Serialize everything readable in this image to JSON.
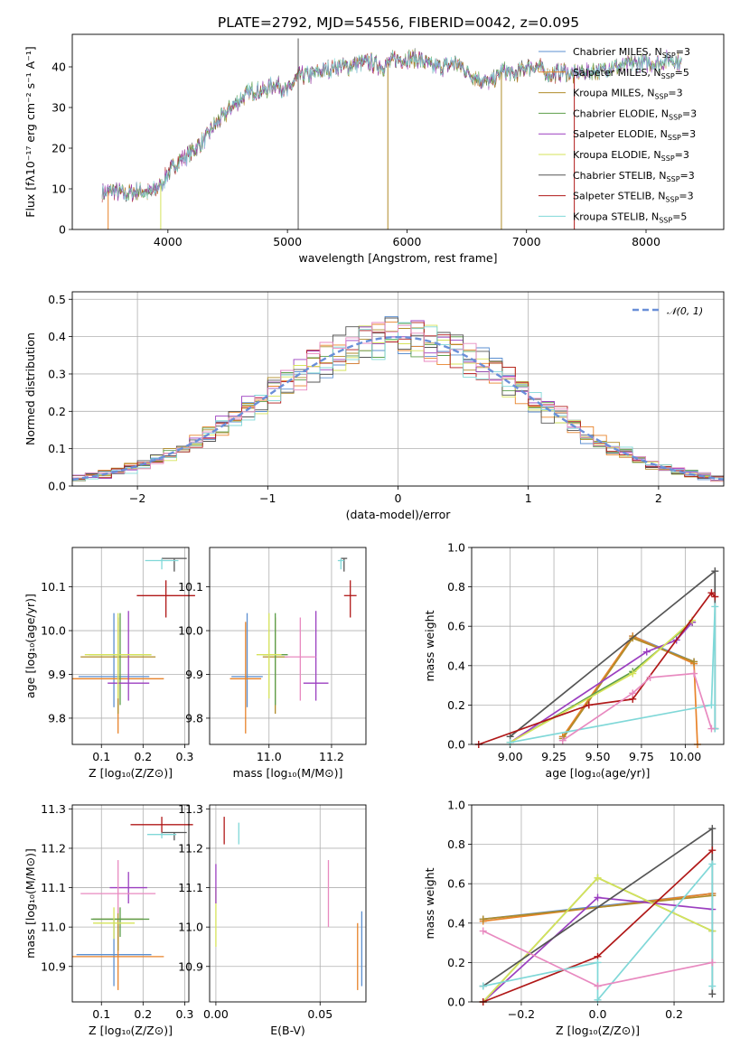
{
  "title": "PLATE=2792, MJD=54556, FIBERID=0042, z=0.095",
  "colors": {
    "Chabrier MILES": "#5b8fd0",
    "Salpeter MILES": "#e8832a",
    "Kroupa MILES": "#b08c2a",
    "Chabrier ELODIE": "#5d9e4a",
    "Salpeter ELODIE": "#9b3fc0",
    "Kroupa ELODIE": "#d6e35a",
    "Chabrier STELIB": "#555555",
    "Salpeter STELIB": "#b01818",
    "Kroupa STELIB": "#80d8d8",
    "Gaussian": "#6a8fd8",
    "Pink": "#e88ac0"
  },
  "chart_data": [
    {
      "type": "line",
      "panel": "spectrum",
      "xlabel": "wavelength [Angstrom, rest frame]",
      "ylabel": "Flux [fλ10⁻¹⁷ erg cm⁻² s⁻¹ A⁻¹]",
      "xlim": [
        3200,
        8650
      ],
      "ylim": [
        0,
        48
      ],
      "xticks": [
        4000,
        5000,
        6000,
        7000,
        8000
      ],
      "yticks": [
        0,
        10,
        20,
        30,
        40
      ],
      "continuum": {
        "x": [
          3450,
          3550,
          3650,
          3750,
          3850,
          3950,
          4000,
          4100,
          4200,
          4300,
          4400,
          4500,
          4600,
          4700,
          4800,
          4900,
          5000,
          5100,
          5200,
          5300,
          5400,
          5500,
          5600,
          5700,
          5800,
          5900,
          6000,
          6100,
          6200,
          6300,
          6400,
          6500,
          6600,
          6700,
          6800,
          6900,
          7000,
          7100,
          7200,
          7300,
          7400,
          7500,
          7600,
          7700,
          7800,
          7900,
          8000,
          8100,
          8200,
          8300
        ],
        "y": [
          9,
          9.5,
          8.5,
          9.5,
          9,
          11,
          14,
          17,
          19,
          22,
          26,
          29,
          32,
          34,
          34,
          36,
          34,
          38,
          38,
          39,
          40,
          40,
          41,
          41,
          40,
          42,
          42,
          42,
          40,
          40,
          41,
          39,
          37,
          36,
          39,
          38,
          40,
          40,
          38,
          39,
          38,
          39,
          39,
          40,
          40,
          41,
          41,
          41,
          42,
          41
        ]
      },
      "legend": [
        "Chabrier MILES, N_SSP=3",
        "Salpeter MILES, N_SSP=5",
        "Kroupa MILES, N_SSP=3",
        "Chabrier ELODIE, N_SSP=3",
        "Salpeter ELODIE, N_SSP=3",
        "Kroupa ELODIE, N_SSP=3",
        "Chabrier STELIB, N_SSP=3",
        "Salpeter STELIB, N_SSP=3",
        "Kroupa STELIB, N_SSP=5"
      ]
    },
    {
      "type": "line",
      "panel": "residuals",
      "xlabel": "(data-model)/error",
      "ylabel": "Normed distribution",
      "xlim": [
        -2.5,
        2.5
      ],
      "ylim": [
        0,
        0.52
      ],
      "xticks": [
        -2,
        -1,
        0,
        1,
        2
      ],
      "yticks": [
        0.0,
        0.1,
        0.2,
        0.3,
        0.4,
        0.5
      ],
      "legend": [
        "𝒩(0, 1)"
      ],
      "bin_width": 0.1
    },
    {
      "type": "scatter",
      "panel": "age-vs-Z",
      "xlabel": "Z [log₁₀(Z/Z⊙)]",
      "ylabel": "age  [log₁₀(age/yr)]",
      "xlim": [
        0.03,
        0.31
      ],
      "ylim": [
        9.74,
        10.19
      ],
      "xticks": [
        0.1,
        0.2,
        0.3
      ],
      "yticks": [
        9.8,
        9.9,
        10.0,
        10.1
      ],
      "points": [
        {
          "series": "Chabrier MILES",
          "x": 0.13,
          "y": 9.895,
          "xerr": 0.085,
          "yerr": [
            0.07,
            0.145
          ]
        },
        {
          "series": "Salpeter MILES",
          "x": 0.14,
          "y": 9.89,
          "xerr": 0.11,
          "yerr": [
            0.125,
            0.13
          ]
        },
        {
          "series": "Kroupa MILES",
          "x": 0.14,
          "y": 9.94,
          "xerr": 0.09,
          "yerr": [
            0.13,
            0.09
          ]
        },
        {
          "series": "Chabrier ELODIE",
          "x": 0.145,
          "y": 9.945,
          "xerr": 0.075,
          "yerr": [
            0.115,
            0.095
          ]
        },
        {
          "series": "Salpeter ELODIE",
          "x": 0.165,
          "y": 9.88,
          "xerr": 0.05,
          "yerr": [
            0.04,
            0.165
          ]
        },
        {
          "series": "Kroupa ELODIE",
          "x": 0.14,
          "y": 9.945,
          "xerr": 0.08,
          "yerr": [
            0.1,
            0.095
          ]
        },
        {
          "series": "Chabrier STELIB",
          "x": 0.275,
          "y": 10.165,
          "xerr": 0.03,
          "yerr": [
            0.03,
            0.0
          ]
        },
        {
          "series": "Salpeter STELIB",
          "x": 0.255,
          "y": 10.08,
          "xerr": 0.07,
          "yerr": [
            0.05,
            0.035
          ]
        },
        {
          "series": "Kroupa STELIB",
          "x": 0.245,
          "y": 10.16,
          "xerr": 0.04,
          "yerr": [
            0.02,
            0.005
          ]
        }
      ]
    },
    {
      "type": "scatter",
      "panel": "age-vs-mass",
      "xlabel": "mass [log₁₀(M/M⊙)]",
      "ylabel": "",
      "xlim": [
        10.81,
        11.31
      ],
      "ylim": [
        9.74,
        10.19
      ],
      "xticks": [
        11.0,
        11.2
      ],
      "yticks": [
        9.8,
        9.9,
        10.0,
        10.1
      ],
      "points": [
        {
          "series": "Chabrier MILES",
          "x": 10.93,
          "y": 9.895,
          "xerr": 0.05,
          "yerr": [
            0.07,
            0.145
          ]
        },
        {
          "series": "Salpeter MILES",
          "x": 10.925,
          "y": 9.89,
          "xerr": 0.05,
          "yerr": [
            0.125,
            0.13
          ]
        },
        {
          "series": "Kroupa MILES",
          "x": 11.02,
          "y": 9.94,
          "xerr": 0.04,
          "yerr": [
            0.13,
            0.09
          ]
        },
        {
          "series": "Chabrier ELODIE",
          "x": 11.02,
          "y": 9.945,
          "xerr": 0.04,
          "yerr": [
            0.115,
            0.095
          ]
        },
        {
          "series": "Salpeter ELODIE",
          "x": 11.15,
          "y": 9.88,
          "xerr": 0.04,
          "yerr": [
            0.04,
            0.165
          ]
        },
        {
          "series": "Kroupa ELODIE",
          "x": 11.0,
          "y": 9.945,
          "xerr": 0.04,
          "yerr": [
            0.1,
            0.095
          ]
        },
        {
          "series": "Chabrier STELIB",
          "x": 11.24,
          "y": 10.165,
          "xerr": 0.01,
          "yerr": [
            0.03,
            0.0
          ]
        },
        {
          "series": "Salpeter STELIB",
          "x": 11.26,
          "y": 10.08,
          "xerr": 0.02,
          "yerr": [
            0.05,
            0.035
          ]
        },
        {
          "series": "Kroupa STELIB",
          "x": 11.23,
          "y": 10.16,
          "xerr": 0.01,
          "yerr": [
            0.02,
            0.005
          ]
        },
        {
          "series": "Pink",
          "x": 11.1,
          "y": 9.94,
          "xerr": 0.05,
          "yerr": [
            0.1,
            0.09
          ]
        }
      ]
    },
    {
      "type": "line",
      "panel": "mass-weight-vs-age",
      "xlabel": "age  [log₁₀(age/yr)]",
      "ylabel": "mass weight",
      "xlim": [
        8.78,
        10.22
      ],
      "ylim": [
        0,
        1.0
      ],
      "xticks": [
        9.0,
        9.25,
        9.5,
        9.75,
        10.0
      ],
      "yticks": [
        0.0,
        0.2,
        0.4,
        0.6,
        0.8,
        1.0
      ],
      "series": [
        {
          "name": "Chabrier MILES",
          "x": [
            9.3,
            9.7,
            10.05
          ],
          "y": [
            0.03,
            0.55,
            0.42
          ]
        },
        {
          "name": "Salpeter MILES",
          "x": [
            9.3,
            9.7,
            10.05,
            10.07
          ],
          "y": [
            0.04,
            0.55,
            0.41,
            0.0
          ]
        },
        {
          "name": "Kroupa MILES",
          "x": [
            9.3,
            9.7,
            10.05
          ],
          "y": [
            0.03,
            0.54,
            0.42
          ]
        },
        {
          "name": "Chabrier ELODIE",
          "x": [
            9.0,
            9.7,
            10.04
          ],
          "y": [
            0.01,
            0.37,
            0.62
          ]
        },
        {
          "name": "Salpeter ELODIE",
          "x": [
            9.0,
            9.78,
            9.95,
            10.04
          ],
          "y": [
            0.01,
            0.47,
            0.53,
            0.62
          ]
        },
        {
          "name": "Kroupa ELODIE",
          "x": [
            9.0,
            9.7,
            10.04
          ],
          "y": [
            0.01,
            0.36,
            0.63
          ]
        },
        {
          "name": "Chabrier STELIB",
          "x": [
            9.0,
            10.17,
            10.17
          ],
          "y": [
            0.04,
            0.88,
            0.08
          ]
        },
        {
          "name": "Salpeter STELIB",
          "x": [
            8.82,
            9.45,
            9.7,
            10.15,
            10.17
          ],
          "y": [
            0.0,
            0.2,
            0.23,
            0.77,
            0.75
          ]
        },
        {
          "name": "Kroupa STELIB",
          "x": [
            9.0,
            10.15,
            10.17,
            10.17
          ],
          "y": [
            0.01,
            0.2,
            0.7,
            0.08
          ]
        },
        {
          "name": "Pink",
          "x": [
            9.3,
            9.7,
            9.8,
            10.05,
            10.15
          ],
          "y": [
            0.02,
            0.26,
            0.34,
            0.36,
            0.08
          ]
        }
      ]
    },
    {
      "type": "scatter",
      "panel": "mass-vs-Z",
      "xlabel": "Z [log₁₀(Z/Z⊙)]",
      "ylabel": "mass [log₁₀(M/M⊙)]",
      "xlim": [
        0.03,
        0.31
      ],
      "ylim": [
        10.81,
        11.31
      ],
      "xticks": [
        0.1,
        0.2,
        0.3
      ],
      "yticks": [
        10.9,
        11.0,
        11.1,
        11.2,
        11.3
      ],
      "points": [
        {
          "series": "Chabrier MILES",
          "x": 0.13,
          "y": 10.93,
          "xerr": 0.09,
          "yerr": [
            0.08,
            0.09
          ]
        },
        {
          "series": "Salpeter MILES",
          "x": 0.14,
          "y": 10.925,
          "xerr": 0.11,
          "yerr": [
            0.085,
            0.085
          ]
        },
        {
          "series": "Kroupa MILES",
          "x": 0.14,
          "y": 11.02,
          "xerr": 0.06,
          "yerr": [
            0.08,
            0.03
          ]
        },
        {
          "series": "Chabrier ELODIE",
          "x": 0.145,
          "y": 11.02,
          "xerr": 0.07,
          "yerr": [
            0.045,
            0.03
          ]
        },
        {
          "series": "Salpeter ELODIE",
          "x": 0.165,
          "y": 11.1,
          "xerr": 0.045,
          "yerr": [
            0.04,
            0.04
          ]
        },
        {
          "series": "Kroupa ELODIE",
          "x": 0.13,
          "y": 11.01,
          "xerr": 0.05,
          "yerr": [
            0.04,
            0.04
          ]
        },
        {
          "series": "Chabrier STELIB",
          "x": 0.275,
          "y": 11.24,
          "xerr": 0.03,
          "yerr": [
            0.02,
            0.0
          ]
        },
        {
          "series": "Salpeter STELIB",
          "x": 0.245,
          "y": 11.26,
          "xerr": 0.075,
          "yerr": [
            0.025,
            0.02
          ]
        },
        {
          "series": "Kroupa STELIB",
          "x": 0.245,
          "y": 11.235,
          "xerr": 0.035,
          "yerr": [
            0.01,
            0.005
          ]
        },
        {
          "series": "Pink",
          "x": 0.14,
          "y": 11.085,
          "xerr": 0.09,
          "yerr": [
            0.05,
            0.085
          ]
        }
      ]
    },
    {
      "type": "scatter",
      "panel": "mass-vs-EBV",
      "xlabel": "E(B-V)",
      "ylabel": "",
      "xlim": [
        -0.003,
        0.072
      ],
      "ylim": [
        10.81,
        11.31
      ],
      "xticks": [
        0.0,
        0.05
      ],
      "yticks": [
        10.9,
        11.0,
        11.1,
        11.2,
        11.3
      ],
      "points": [
        {
          "series": "Chabrier MILES",
          "x": 0.07,
          "y": 10.93,
          "xerr": 0.0,
          "yerr": [
            0.08,
            0.11
          ]
        },
        {
          "series": "Salpeter MILES",
          "x": 0.068,
          "y": 10.925,
          "xerr": 0.0,
          "yerr": [
            0.085,
            0.085
          ]
        },
        {
          "series": "Kroupa ELODIE",
          "x": 0.0,
          "y": 11.01,
          "xerr": 0.0,
          "yerr": [
            0.06,
            0.09
          ]
        },
        {
          "series": "Salpeter ELODIE",
          "x": 0.0,
          "y": 11.1,
          "xerr": 0.0,
          "yerr": [
            0.04,
            0.06
          ]
        },
        {
          "series": "Salpeter STELIB",
          "x": 0.004,
          "y": 11.24,
          "xerr": 0.0,
          "yerr": [
            0.03,
            0.04
          ]
        },
        {
          "series": "Kroupa STELIB",
          "x": 0.011,
          "y": 11.235,
          "xerr": 0.0,
          "yerr": [
            0.025,
            0.03
          ]
        },
        {
          "series": "Pink",
          "x": 0.054,
          "y": 11.085,
          "xerr": 0.0,
          "yerr": [
            0.085,
            0.085
          ]
        }
      ]
    },
    {
      "type": "line",
      "panel": "mass-weight-vs-Z",
      "xlabel": "Z [log₁₀(Z/Z⊙)]",
      "ylabel": "mass weight",
      "xlim": [
        -0.33,
        0.33
      ],
      "ylim": [
        0,
        1.0
      ],
      "xticks": [
        -0.2,
        0.0,
        0.2
      ],
      "yticks": [
        0.0,
        0.2,
        0.4,
        0.6,
        0.8,
        1.0
      ],
      "series": [
        {
          "name": "Chabrier MILES",
          "x": [
            -0.3,
            0.3
          ],
          "y": [
            0.42,
            0.55
          ]
        },
        {
          "name": "Salpeter MILES",
          "x": [
            -0.3,
            0.3
          ],
          "y": [
            0.41,
            0.55
          ]
        },
        {
          "name": "Kroupa MILES",
          "x": [
            -0.3,
            0.3
          ],
          "y": [
            0.42,
            0.54
          ]
        },
        {
          "name": "Chabrier ELODIE",
          "x": [
            -0.3,
            0.0,
            0.3
          ],
          "y": [
            0.0,
            0.63,
            0.36
          ]
        },
        {
          "name": "Salpeter ELODIE",
          "x": [
            -0.3,
            0.0,
            0.3
          ],
          "y": [
            0.0,
            0.53,
            0.47
          ]
        },
        {
          "name": "Kroupa ELODIE",
          "x": [
            -0.3,
            0.0,
            0.3
          ],
          "y": [
            0.0,
            0.63,
            0.36
          ]
        },
        {
          "name": "Chabrier STELIB",
          "x": [
            -0.3,
            0.3,
            0.3
          ],
          "y": [
            0.08,
            0.88,
            0.04
          ]
        },
        {
          "name": "Salpeter STELIB",
          "x": [
            -0.3,
            0.0,
            0.3
          ],
          "y": [
            0.0,
            0.23,
            0.77
          ]
        },
        {
          "name": "Kroupa STELIB",
          "x": [
            -0.3,
            0.0,
            0.0,
            0.3,
            0.3
          ],
          "y": [
            0.08,
            0.2,
            0.01,
            0.7,
            0.08
          ]
        },
        {
          "name": "Pink",
          "x": [
            -0.3,
            0.0,
            0.3
          ],
          "y": [
            0.36,
            0.08,
            0.2
          ]
        }
      ]
    }
  ]
}
